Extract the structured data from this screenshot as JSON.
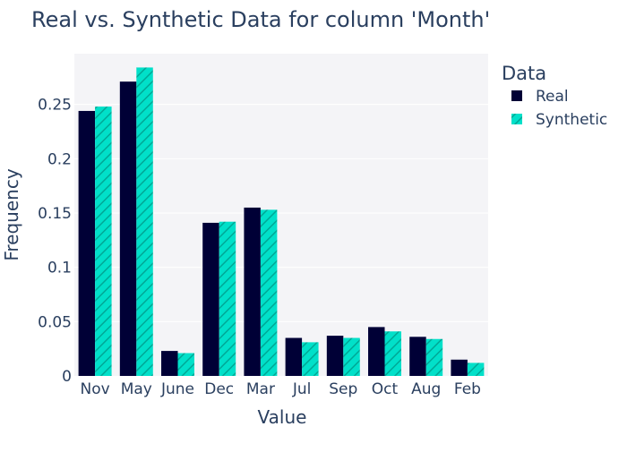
{
  "chart_data": {
    "type": "bar",
    "title": "Real vs. Synthetic Data for column 'Month'",
    "xlabel": "Value",
    "ylabel": "Frequency",
    "categories": [
      "Nov",
      "May",
      "June",
      "Dec",
      "Mar",
      "Jul",
      "Sep",
      "Oct",
      "Aug",
      "Feb"
    ],
    "series": [
      {
        "name": "Real",
        "values": [
          0.244,
          0.271,
          0.023,
          0.141,
          0.155,
          0.035,
          0.037,
          0.045,
          0.036,
          0.015
        ],
        "color": "#000036"
      },
      {
        "name": "Synthetic",
        "values": [
          0.248,
          0.284,
          0.021,
          0.142,
          0.153,
          0.031,
          0.035,
          0.041,
          0.034,
          0.012
        ],
        "color": "#01E0C9"
      }
    ],
    "ylim": [
      0,
      0.2967
    ],
    "yticks": [
      0,
      0.05,
      0.1,
      0.15,
      0.2,
      0.25
    ],
    "ytick_labels": [
      "0",
      "0.05",
      "0.1",
      "0.15",
      "0.2",
      "0.25"
    ],
    "legend_title": "Data",
    "legend_position": "top-right",
    "grid": true,
    "plot_background": "#F4F4F7",
    "text_color": "#2A3F5F"
  }
}
